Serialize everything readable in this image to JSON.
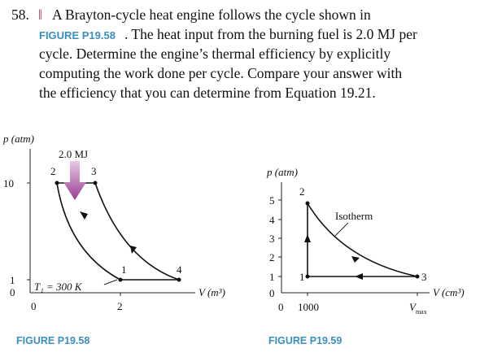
{
  "problem": {
    "number": "58.",
    "difficulty": "‖",
    "lines": [
      {
        "text": "A Brayton-cycle heat engine follows the cycle shown in"
      },
      {
        "figure_ref": "FIGURE P19.58",
        "text": ". The heat input from the burning fuel is 2.0 MJ per"
      },
      {
        "text": "cycle. Determine the engine’s thermal efficiency by explicitly"
      },
      {
        "text": "computing the work done per cycle. Compare your answer with"
      },
      {
        "text": "the efficiency that you can determine from Equation 19.21."
      }
    ]
  },
  "figure_58": {
    "y_label": "p (atm)",
    "x_label": "V (m³)",
    "heat_label": "2.0 MJ",
    "temp_label": "T₁ = 300 K",
    "y_ticks": [
      "10",
      "1",
      "0"
    ],
    "x_ticks": [
      "0",
      "2"
    ],
    "points": [
      "1",
      "2",
      "3",
      "4"
    ],
    "caption": "FIGURE P19.58"
  },
  "figure_59": {
    "y_label": "p (atm)",
    "x_label": "V (cm³)",
    "curve_label": "Isotherm",
    "y_ticks": [
      "5",
      "4",
      "3",
      "2",
      "1",
      "0"
    ],
    "x_ticks": [
      "0",
      "1000"
    ],
    "x_max": "V",
    "x_max_sub": "max",
    "points": [
      "1",
      "2",
      "3"
    ],
    "caption": "FIGURE P19.59"
  }
}
